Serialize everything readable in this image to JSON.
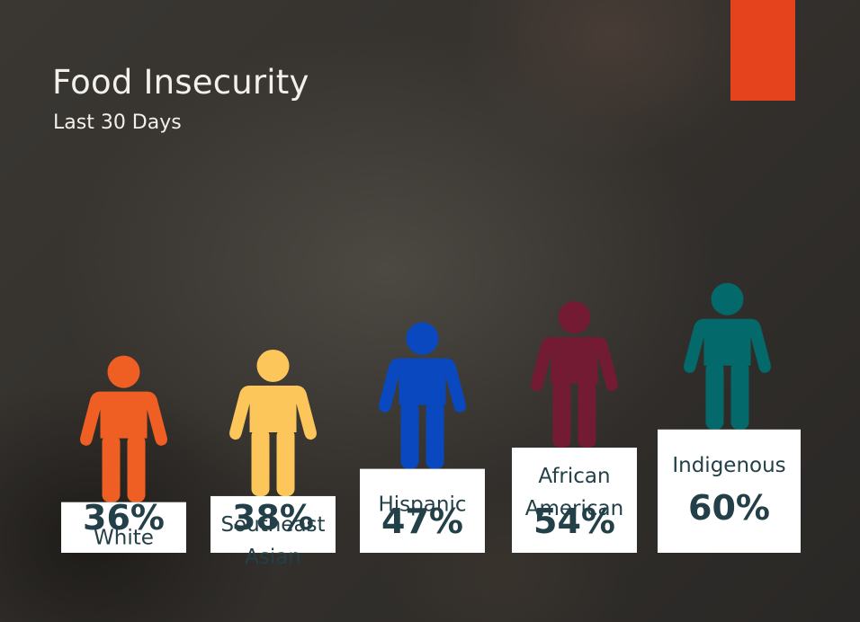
{
  "slide": {
    "title": "Food Insecurity",
    "subtitle": "Last 30 Days",
    "accent_color": "#e5431e"
  },
  "chart_data": {
    "type": "bar",
    "title": "Food Insecurity",
    "subtitle": "Last 30 Days",
    "categories": [
      "White",
      "Southeast Asian",
      "Hispanic",
      "African American",
      "Indigenous"
    ],
    "category_lines": [
      [
        "White"
      ],
      [
        "Southeast",
        "Asian"
      ],
      [
        "Hispanic"
      ],
      [
        "African",
        "American"
      ],
      [
        "Indigenous"
      ]
    ],
    "values": [
      36,
      38,
      47,
      54,
      60
    ],
    "value_labels": [
      "36%",
      "38%",
      "47%",
      "54%",
      "60%"
    ],
    "unit": "%",
    "figure_colors": [
      "#ef5e22",
      "#fcc65a",
      "#0a48bf",
      "#721b33",
      "#03696a"
    ],
    "bar_color": "#ffffff",
    "text_color": "#233f48",
    "icon": "person-icon",
    "grid": false
  }
}
